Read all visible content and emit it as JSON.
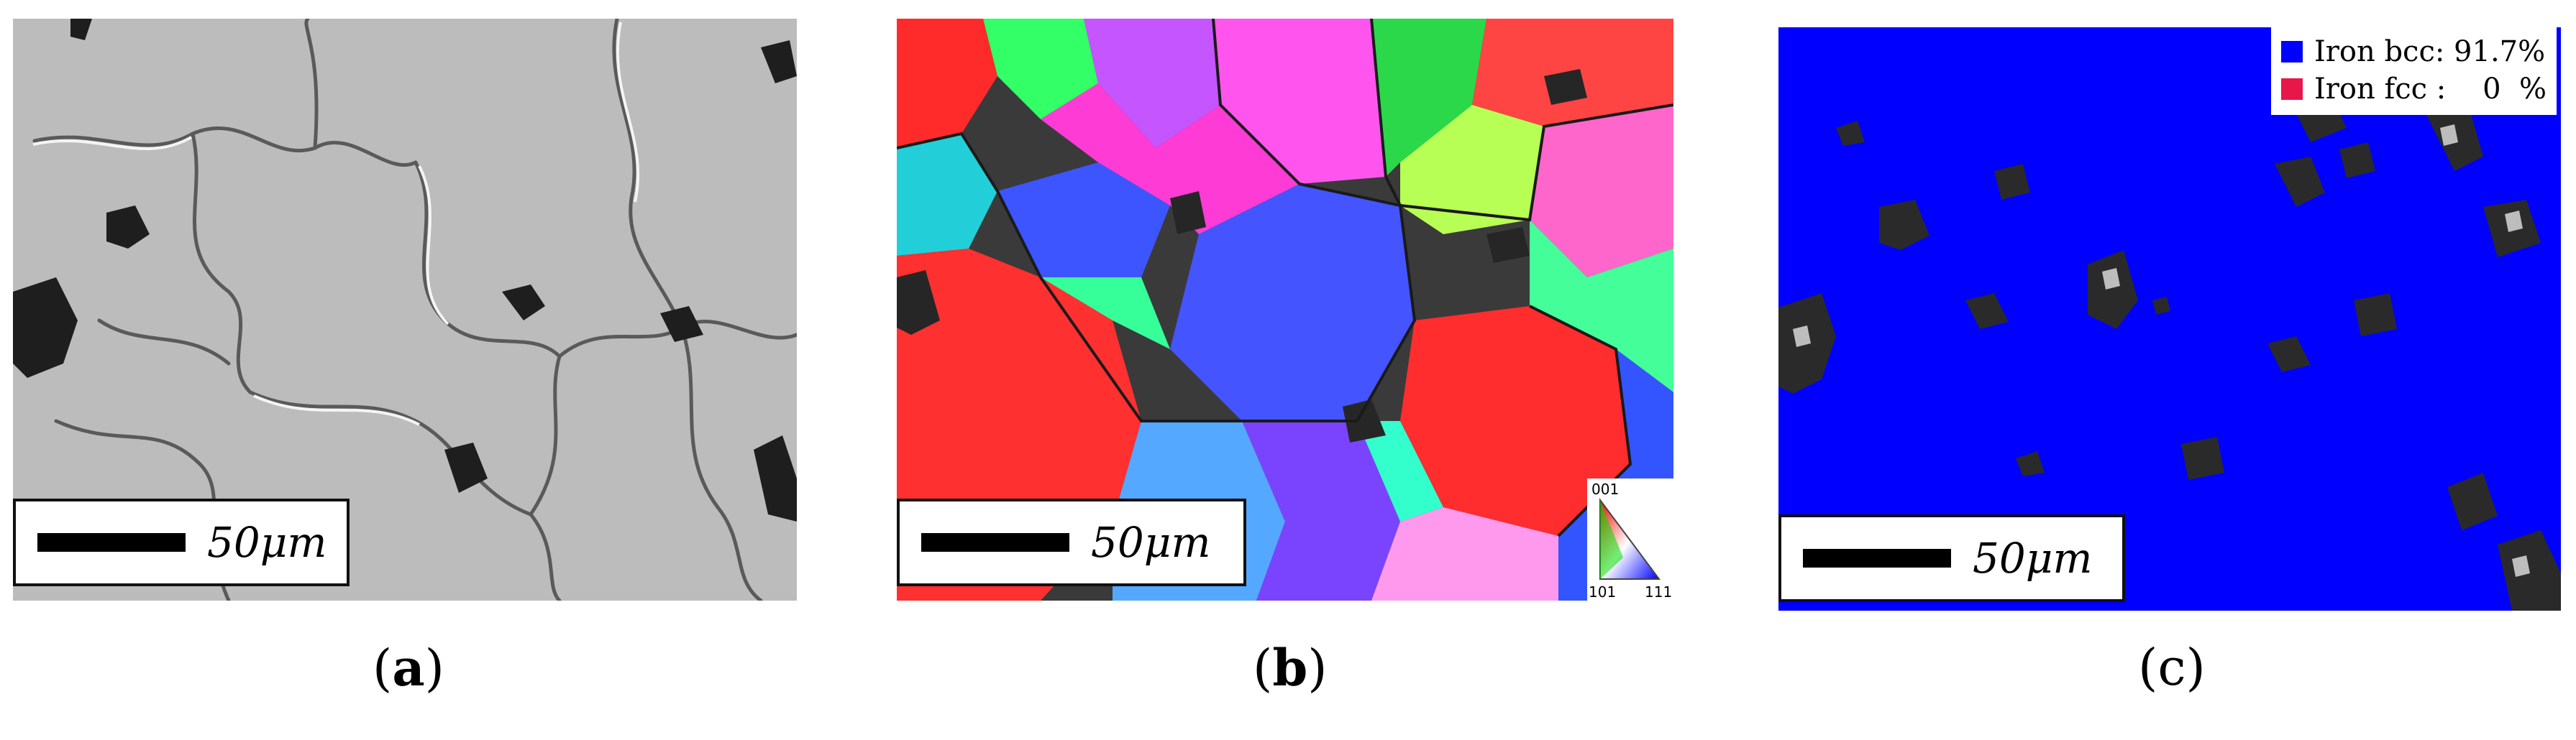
{
  "panels": [
    {
      "id": "a",
      "caption_letter": "a",
      "scalebar_label": "50μm"
    },
    {
      "id": "b",
      "caption_letter": "b",
      "scalebar_label": "50μm",
      "ipf_legend": {
        "top": "001",
        "bottom_left": "101",
        "bottom_right": "111"
      }
    },
    {
      "id": "c",
      "caption_letter": "c",
      "scalebar_label": "50μm",
      "phase_legend": [
        {
          "name": "Iron bcc: 91.7%",
          "color": "#0000ff"
        },
        {
          "name": "Iron fcc :    0  %",
          "color": "#e8174b"
        }
      ]
    }
  ],
  "colors": {
    "sem_background": "#b9b9b9",
    "pore": "#1e1e1e",
    "bcc_phase": "#0000ff"
  }
}
